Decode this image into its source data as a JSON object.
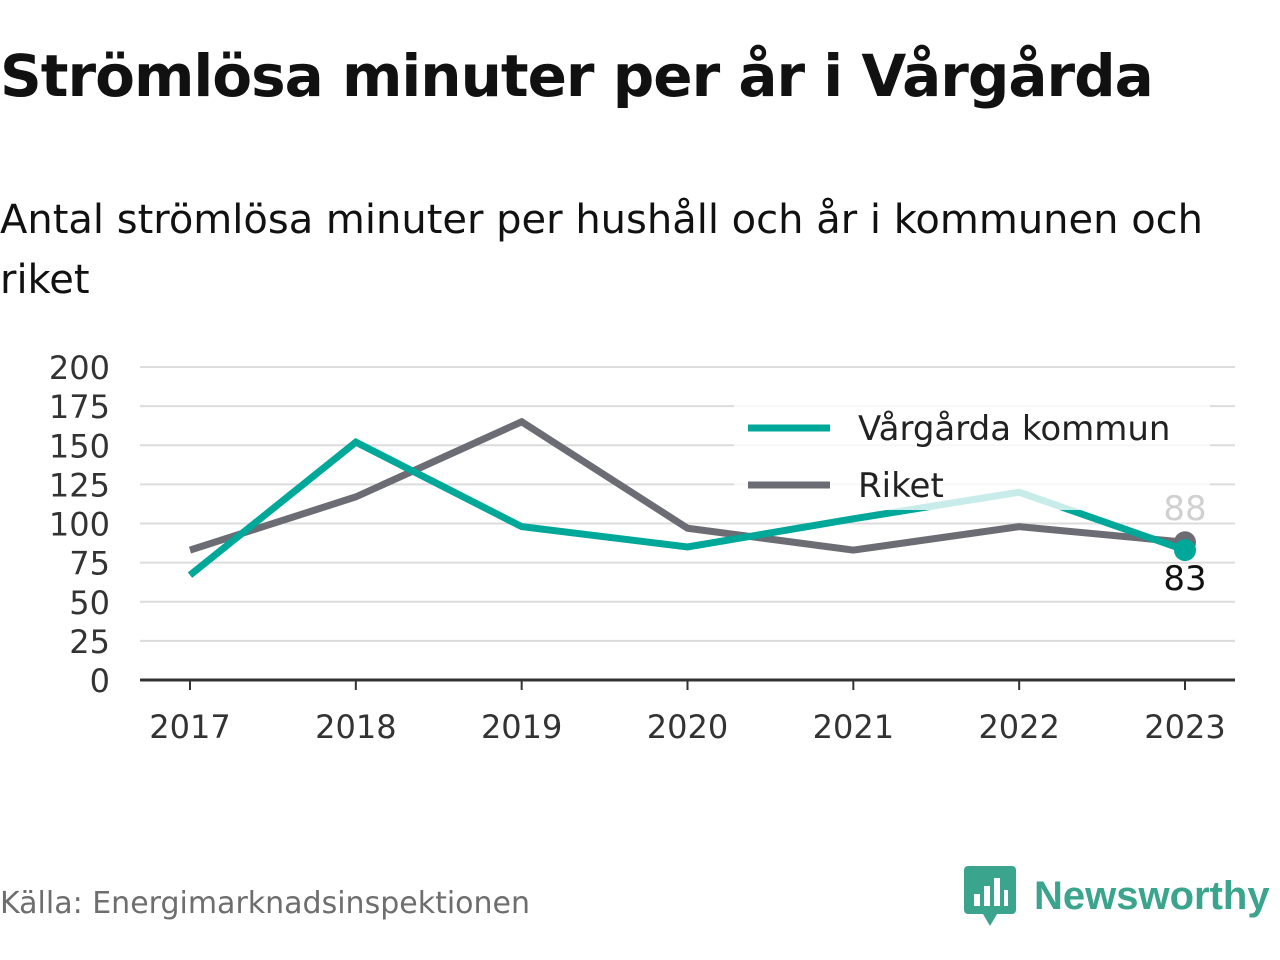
{
  "title": "Strömlösa minuter per år i Vårgårda",
  "subtitle": "Antal strömlösa minuter per hushåll och år i kommunen och riket",
  "source": "Källa: Energimarknadsinspektionen",
  "brand": {
    "name": "Newsworthy",
    "icon": "newsworthy-logo-icon",
    "color": "#3aa48c"
  },
  "chart_data": {
    "type": "line",
    "x": [
      "2017",
      "2018",
      "2019",
      "2020",
      "2021",
      "2022",
      "2023"
    ],
    "ylim": [
      0,
      200
    ],
    "yticks": [
      0,
      25,
      50,
      75,
      100,
      125,
      150,
      175,
      200
    ],
    "grid": true,
    "legend_position": "top-right",
    "series": [
      {
        "name": "Vårgårda kommun",
        "color": "#00a89a",
        "values": [
          67,
          152,
          98,
          85,
          103,
          120,
          83
        ],
        "end_label": "83"
      },
      {
        "name": "Riket",
        "color": "#6c6c74",
        "values": [
          83,
          117,
          165,
          97,
          83,
          98,
          88
        ],
        "end_label": "88"
      }
    ]
  }
}
